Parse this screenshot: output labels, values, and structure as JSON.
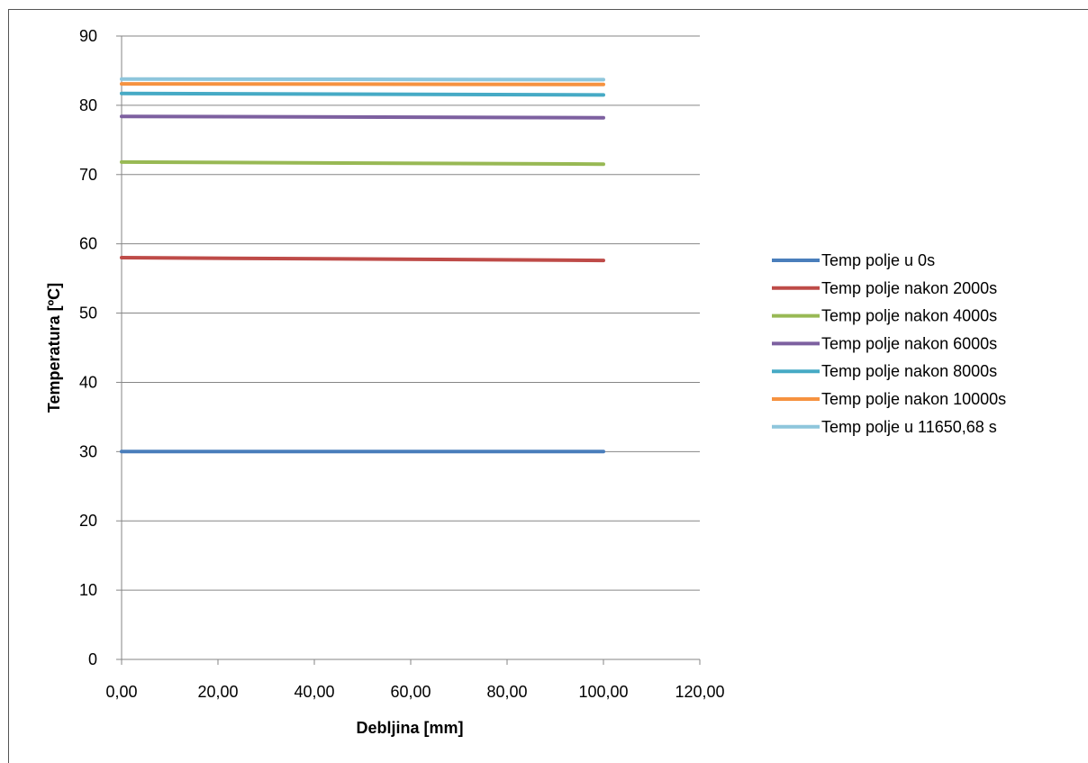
{
  "chart_data": {
    "type": "line",
    "title": "",
    "xlabel": "Debljina [mm]",
    "ylabel": "Temperatura [ºC]",
    "xlim": [
      0,
      120
    ],
    "ylim": [
      0,
      90
    ],
    "x_ticks": [
      0,
      20,
      40,
      60,
      80,
      100,
      120
    ],
    "x_tick_labels": [
      "0,00",
      "20,00",
      "40,00",
      "60,00",
      "80,00",
      "100,00",
      "120,00"
    ],
    "y_ticks": [
      0,
      10,
      20,
      30,
      40,
      50,
      60,
      70,
      80,
      90
    ],
    "y_tick_labels": [
      "0",
      "10",
      "20",
      "30",
      "40",
      "50",
      "60",
      "70",
      "80",
      "90"
    ],
    "grid": "horizontal",
    "legend_position": "right",
    "series": [
      {
        "name": "Temp polje u 0s",
        "color": "#4a7ebb",
        "x": [
          0,
          100
        ],
        "y": [
          30.0,
          30.0
        ]
      },
      {
        "name": "Temp polje nakon 2000s",
        "color": "#be4b48",
        "x": [
          0,
          100
        ],
        "y": [
          58.0,
          57.6
        ]
      },
      {
        "name": "Temp polje nakon 4000s",
        "color": "#98b954",
        "x": [
          0,
          100
        ],
        "y": [
          71.8,
          71.5
        ]
      },
      {
        "name": "Temp polje nakon 6000s",
        "color": "#7d60a0",
        "x": [
          0,
          100
        ],
        "y": [
          78.4,
          78.2
        ]
      },
      {
        "name": "Temp polje nakon 8000s",
        "color": "#46aac5",
        "x": [
          0,
          100
        ],
        "y": [
          81.7,
          81.5
        ]
      },
      {
        "name": "Temp polje nakon 10000s",
        "color": "#f69240",
        "x": [
          0,
          100
        ],
        "y": [
          83.1,
          83.0
        ]
      },
      {
        "name": "Temp polje u 11650,68 s",
        "color": "#8ec6dc",
        "x": [
          0,
          100
        ],
        "y": [
          83.8,
          83.7
        ]
      }
    ]
  }
}
